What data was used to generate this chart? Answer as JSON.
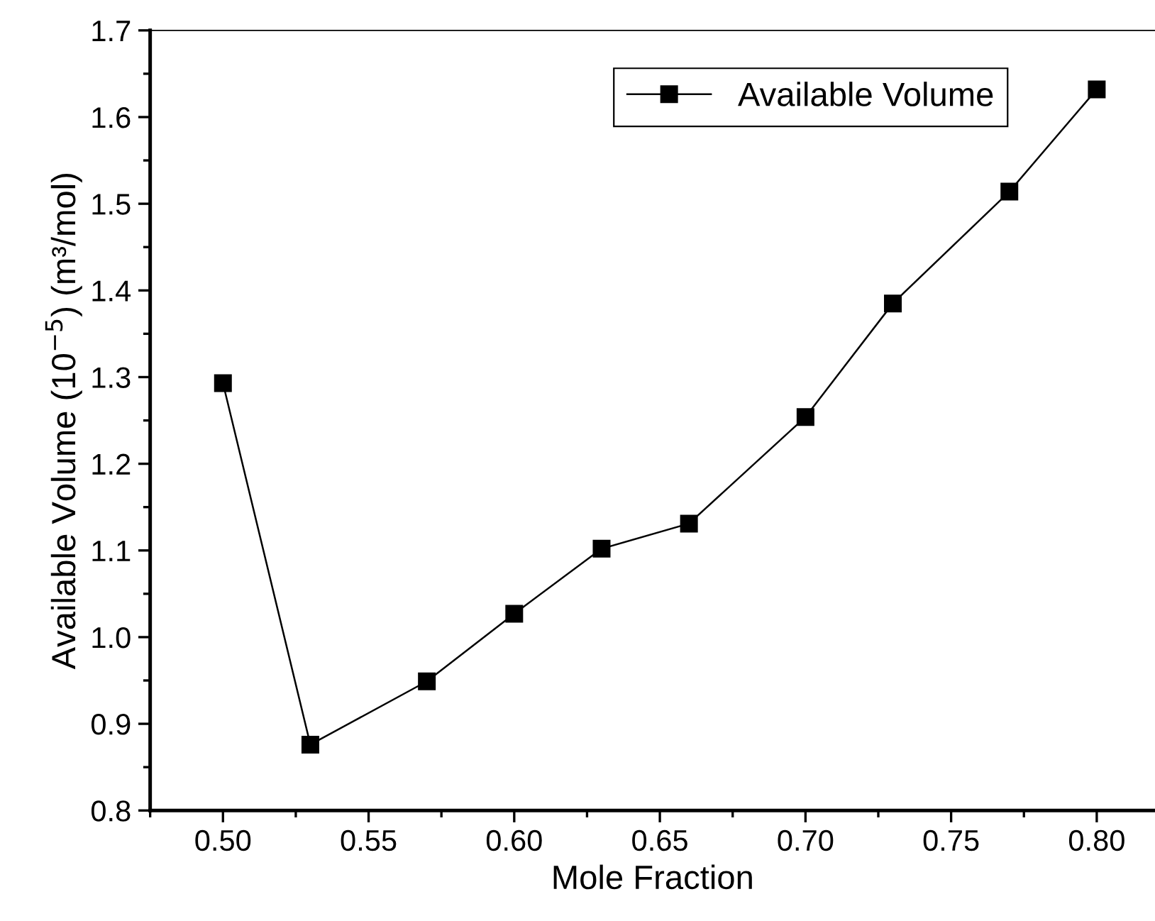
{
  "chart_data": {
    "type": "line",
    "xlabel": "Mole Fraction",
    "ylabel": "Available Volume (10$^{−5}$) (m³/mol)",
    "x": [
      0.5,
      0.53,
      0.57,
      0.6,
      0.63,
      0.66,
      0.7,
      0.73,
      0.77,
      0.8
    ],
    "series": [
      {
        "name": "Available Volume",
        "color": "#000000",
        "values": [
          1.293,
          0.876,
          0.949,
          1.027,
          1.102,
          1.131,
          1.254,
          1.385,
          1.514,
          1.632
        ]
      }
    ],
    "xlim": [
      0.475,
      0.82
    ],
    "xticks": [
      {
        "value": 0.5,
        "label": "0.50"
      },
      {
        "value": 0.55,
        "label": "0.55"
      },
      {
        "value": 0.6,
        "label": "0.60"
      },
      {
        "value": 0.65,
        "label": "0.65"
      },
      {
        "value": 0.7,
        "label": "0.70"
      },
      {
        "value": 0.75,
        "label": "0.75"
      },
      {
        "value": 0.8,
        "label": "0.80"
      }
    ],
    "ylim": [
      0.8,
      1.7
    ],
    "yticks": [
      0.8,
      0.9,
      {
        "value": 1.0,
        "label": "1.0"
      },
      1.1,
      1.2,
      1.3,
      1.4,
      1.5,
      1.6,
      1.7
    ],
    "marker": "square",
    "line_style": "solid",
    "grid": false,
    "legend": "top right"
  }
}
